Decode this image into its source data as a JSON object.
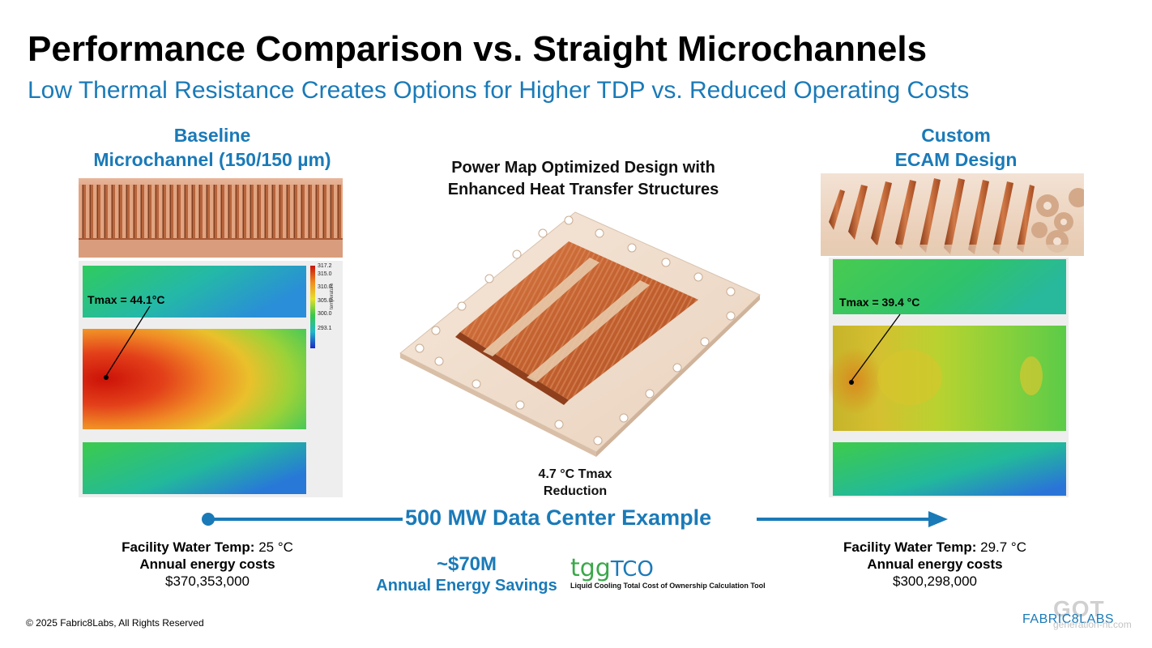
{
  "header": {
    "title": "Performance Comparison vs. Straight Microchannels",
    "subtitle": "Low Thermal Resistance Creates Options for Higher TDP vs. Reduced Operating Costs"
  },
  "left": {
    "heading_line1": "Baseline",
    "heading_line2": "Microchannel (150/150 µm)",
    "tmax_label": "Tmax = 44.1°C",
    "colorbar_ticks": [
      "317.2",
      "315.0",
      "310.0",
      "305.0",
      "300.0",
      "293.1"
    ],
    "colorbar_title": "temperature",
    "facility_label": "Facility Water Temp:",
    "facility_value": "25 °C",
    "energy_label": "Annual energy costs",
    "energy_value": "$370,353,000"
  },
  "center": {
    "heading_line1": "Power Map Optimized Design with",
    "heading_line2": "Enhanced Heat Transfer Structures",
    "reduction_line1": "4.7 °C Tmax",
    "reduction_line2": "Reduction",
    "datacenter": "500 MW Data Center Example",
    "savings_value": "~$70M",
    "savings_label": "Annual Energy Savings",
    "tool_logo_a": "tgg",
    "tool_logo_b": "TCO",
    "tool_caption": "Liquid Cooling Total Cost of Ownership Calculation Tool"
  },
  "right": {
    "heading_line1": "Custom",
    "heading_line2": "ECAM Design",
    "tmax_label": "Tmax = 39.4 °C",
    "facility_label": "Facility Water Temp:",
    "facility_value": "29.7 °C",
    "energy_label": "Annual energy costs",
    "energy_value": "$300,298,000"
  },
  "footer": {
    "copyright": "© 2025 Fabric8Labs, All Rights Reserved",
    "brand": "FABRIC8LABS",
    "watermark_main": "GOT",
    "watermark_sub": "generation-nt.com"
  },
  "colors": {
    "accent": "#1a7ab8",
    "copper": "#c8703f",
    "hot": "#d41a0a",
    "cool": "#2b6fd6"
  }
}
